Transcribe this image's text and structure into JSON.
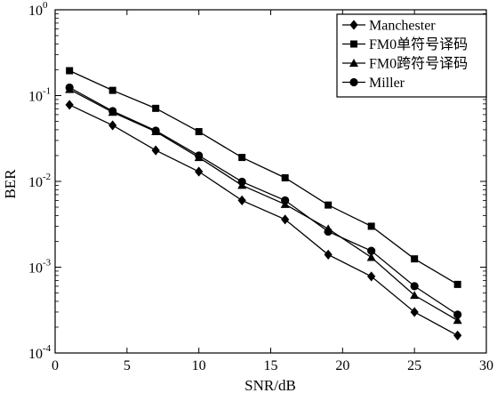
{
  "chart_data": {
    "type": "line",
    "xlabel": "SNR/dB",
    "ylabel": "BER",
    "xlim": [
      0,
      30
    ],
    "ylim": [
      0.0001,
      1
    ],
    "yscale": "log",
    "xticks": [
      "0",
      "5",
      "10",
      "15",
      "20",
      "25",
      "30"
    ],
    "yticks": [
      {
        "base": "10",
        "exp": "0"
      },
      {
        "base": "10",
        "exp": "-1"
      },
      {
        "base": "10",
        "exp": "-2"
      },
      {
        "base": "10",
        "exp": "-3"
      },
      {
        "base": "10",
        "exp": "-4"
      }
    ],
    "grid": false,
    "legend_position": "top-right",
    "x": [
      1,
      4,
      7,
      10,
      13,
      16,
      19,
      22,
      25,
      28
    ],
    "series": [
      {
        "name": "Manchester",
        "marker": "diamond",
        "color": "#000000",
        "values": [
          0.078,
          0.045,
          0.023,
          0.013,
          0.006,
          0.0036,
          0.0014,
          0.00078,
          0.0003,
          0.00016
        ]
      },
      {
        "name": "FM0单符号译码",
        "marker": "square",
        "color": "#000000",
        "values": [
          0.195,
          0.115,
          0.071,
          0.038,
          0.019,
          0.011,
          0.0053,
          0.003,
          0.00125,
          0.00063
        ]
      },
      {
        "name": "FM0跨符号译码",
        "marker": "triangle",
        "color": "#000000",
        "values": [
          0.118,
          0.064,
          0.038,
          0.019,
          0.009,
          0.0054,
          0.0028,
          0.0013,
          0.00047,
          0.00024
        ]
      },
      {
        "name": "Miller",
        "marker": "circle",
        "color": "#000000",
        "values": [
          0.124,
          0.066,
          0.039,
          0.02,
          0.0099,
          0.006,
          0.0026,
          0.00155,
          0.0006,
          0.00028
        ]
      }
    ]
  }
}
